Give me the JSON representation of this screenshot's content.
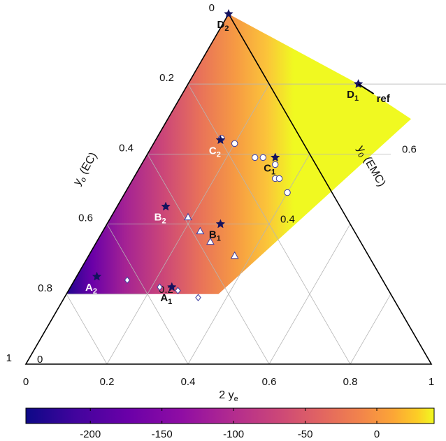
{
  "chart_data": {
    "type": "scatter",
    "subtype": "ternary",
    "title": "",
    "axes": {
      "bottom": {
        "label_main": "2 y",
        "label_sub": "e",
        "range": [
          0,
          1
        ],
        "ticks": [
          "0",
          "0.2",
          "0.4",
          "0.6",
          "0.8",
          "1"
        ]
      },
      "left": {
        "label_main": "y",
        "label_sub": "o",
        "label_rest": " (EC)",
        "range": [
          0,
          1
        ],
        "ticks": [
          "0",
          "0.2",
          "0.4",
          "0.6",
          "0.8",
          "1"
        ]
      },
      "right": {
        "label_main": "y",
        "label_sub": "0",
        "label_rest": " (EMC)",
        "range": [
          0,
          1
        ],
        "ticks": [
          "0",
          "0.2",
          "0.4",
          "0.6",
          "0.8",
          "1"
        ]
      }
    },
    "grid": true,
    "heatmap_region": {
      "2ye_min": 0,
      "2ye_max": 0.6,
      "yEC_max": 0.8
    },
    "colorbar": {
      "range": [
        -245,
        40
      ],
      "ticks": [
        "-200",
        "-150",
        "-100",
        "-50",
        "0"
      ],
      "tick_values": [
        -200,
        -150,
        -100,
        -50,
        0
      ],
      "colormap": "plasma",
      "placement": "bottom"
    },
    "stars": [
      {
        "name": "A",
        "sub": "2",
        "x": 0.05,
        "yEC": 0.75,
        "label_color": "#ffffff"
      },
      {
        "name": "A",
        "sub": "1",
        "x": 0.25,
        "yEC": 0.78,
        "label_color": "#111111"
      },
      {
        "name": "B",
        "sub": "2",
        "x": 0.12,
        "yEC": 0.55,
        "label_color": "#ffffff"
      },
      {
        "name": "B",
        "sub": "1",
        "x": 0.28,
        "yEC": 0.6,
        "label_color": "#111111"
      },
      {
        "name": "C",
        "sub": "2",
        "x": 0.16,
        "yEC": 0.36,
        "label_color": "#ffffff"
      },
      {
        "name": "C",
        "sub": "1",
        "x": 0.32,
        "yEC": 0.41,
        "label_color": "#111111"
      },
      {
        "name": "D",
        "sub": "1",
        "x": 0.42,
        "yEC": 0.2,
        "label_color": "#111111"
      },
      {
        "name": "D",
        "sub": "2",
        "x": 0.0,
        "yEC": 0.0,
        "label_color": "#111111"
      }
    ],
    "ref": {
      "label": "ref",
      "x": 0.42,
      "yEC": 0.2
    },
    "circles": [
      {
        "x": 0.16,
        "yEC": 0.355
      },
      {
        "x": 0.2,
        "yEC": 0.37
      },
      {
        "x": 0.27,
        "yEC": 0.41
      },
      {
        "x": 0.29,
        "yEC": 0.41
      },
      {
        "x": 0.33,
        "yEC": 0.43
      },
      {
        "x": 0.35,
        "yEC": 0.47
      },
      {
        "x": 0.36,
        "yEC": 0.47
      },
      {
        "x": 0.4,
        "yEC": 0.51
      }
    ],
    "triangles": [
      {
        "x": 0.19,
        "yEC": 0.58
      },
      {
        "x": 0.24,
        "yEC": 0.62
      },
      {
        "x": 0.28,
        "yEC": 0.65
      },
      {
        "x": 0.36,
        "yEC": 0.69
      }
    ],
    "diamonds": [
      {
        "x": 0.13,
        "yEC": 0.76
      },
      {
        "x": 0.22,
        "yEC": 0.78
      },
      {
        "x": 0.27,
        "yEC": 0.79
      },
      {
        "x": 0.33,
        "yEC": 0.81
      }
    ]
  }
}
